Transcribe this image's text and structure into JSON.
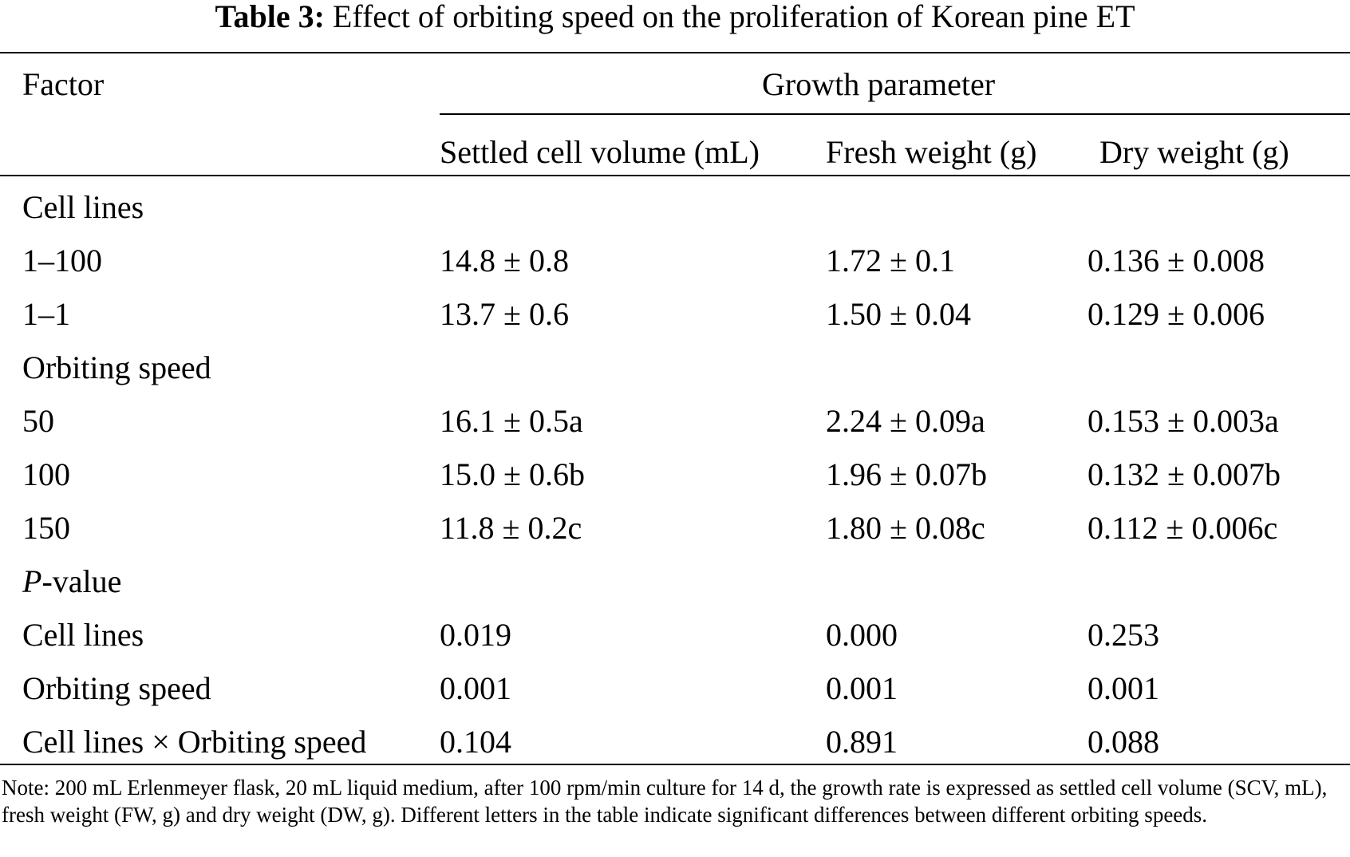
{
  "caption": {
    "label": "Table 3:",
    "text": "Effect of orbiting speed on the proliferation of Korean pine ET"
  },
  "header": {
    "factor": "Factor",
    "group": "Growth parameter",
    "columns": [
      "Settled cell volume (mL)",
      "Fresh weight (g)",
      "Dry weight (g)"
    ]
  },
  "rows": [
    {
      "label": "Cell lines",
      "values": [
        "",
        "",
        ""
      ],
      "section": true
    },
    {
      "label": "1–100",
      "values": [
        "14.8 ± 0.8",
        "1.72 ± 0.1",
        "0.136 ± 0.008"
      ]
    },
    {
      "label": "1–1",
      "values": [
        "13.7 ± 0.6",
        "1.50 ± 0.04",
        "0.129 ± 0.006"
      ]
    },
    {
      "label": "Orbiting speed",
      "values": [
        "",
        "",
        ""
      ],
      "section": true
    },
    {
      "label": "50",
      "values": [
        "16.1 ± 0.5a",
        "2.24 ± 0.09a",
        "0.153 ± 0.003a"
      ]
    },
    {
      "label": "100",
      "values": [
        "15.0 ± 0.6b",
        "1.96 ± 0.07b",
        "0.132 ± 0.007b"
      ]
    },
    {
      "label": "150",
      "values": [
        "11.8 ± 0.2c",
        "1.80 ± 0.08c",
        "0.112 ± 0.006c"
      ]
    },
    {
      "label": "P-value",
      "values": [
        "",
        "",
        ""
      ],
      "section": true
    },
    {
      "label": "Cell lines",
      "values": [
        "0.019",
        "0.000",
        "0.253"
      ]
    },
    {
      "label": "Orbiting speed",
      "values": [
        "0.001",
        "0.001",
        "0.001"
      ]
    },
    {
      "label": "Cell lines × Orbiting speed",
      "values": [
        "0.104",
        "0.891",
        "0.088"
      ]
    }
  ],
  "pvalue_label": {
    "italic": "P",
    "rest": "-value"
  },
  "note": "Note: 200 mL Erlenmeyer flask, 20 mL liquid medium, after 100 rpm/min culture for 14 d, the growth rate is expressed as settled cell volume (SCV, mL), fresh weight (FW, g) and dry weight (DW, g). Different letters in the table indicate significant differences between different orbiting speeds."
}
